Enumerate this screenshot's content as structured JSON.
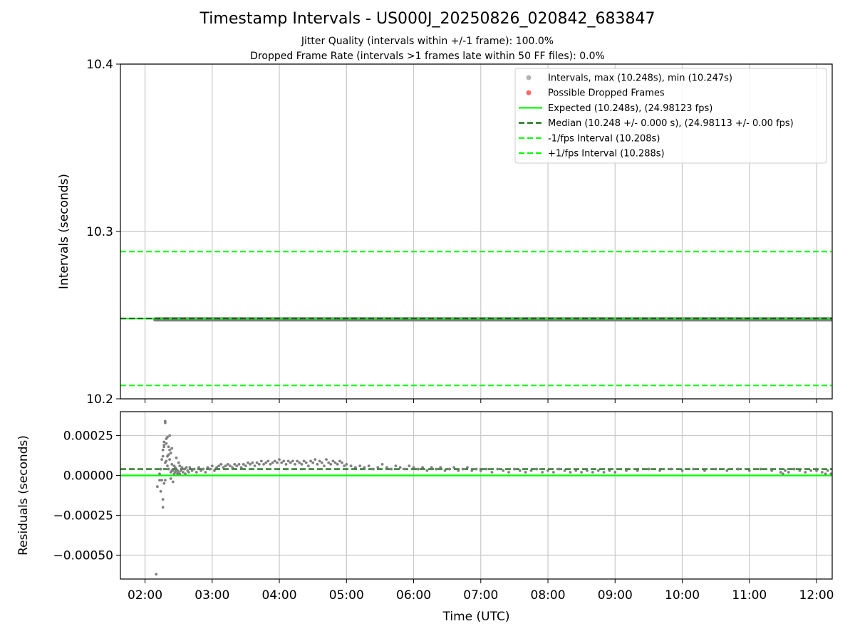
{
  "figure": {
    "title": "Timestamp Intervals - US000J_20250826_020842_683847",
    "subtitle1": "Jitter Quality (intervals within +/-1 frame): 100.0%",
    "subtitle2": "Dropped Frame Rate (intervals >1 frames late within 50 FF files): 0.0%"
  },
  "colors": {
    "points": "#808080",
    "legend_points": "#b3b3b3",
    "dropped": "#ff6666",
    "expected": "#00ff00",
    "median": "#006400",
    "bounds": "#00ff00",
    "grid": "#c8c8c8"
  },
  "chart_data": [
    {
      "type": "scatter",
      "panel": "top",
      "ylabel": "Intervals (seconds)",
      "ylim": [
        10.2,
        10.4
      ],
      "yticks": [
        10.2,
        10.3,
        10.4
      ],
      "ytick_labels": [
        "10.2",
        "10.3",
        "10.4"
      ],
      "xlim": [
        "01:38",
        "12:14"
      ],
      "xticks": [
        "02:00",
        "03:00",
        "04:00",
        "05:00",
        "06:00",
        "07:00",
        "08:00",
        "09:00",
        "10:00",
        "11:00",
        "12:00"
      ],
      "grid": true,
      "legend_position": "upper-right",
      "legend": [
        {
          "label": "Intervals, max (10.248s), min (10.247s)",
          "kind": "marker",
          "color_key": "legend_points"
        },
        {
          "label": "Possible Dropped Frames",
          "kind": "marker",
          "color_key": "dropped"
        },
        {
          "label": "Expected (10.248s), (24.98123 fps)",
          "kind": "solid",
          "color_key": "expected"
        },
        {
          "label": "Median (10.248 +/- 0.000 s), (24.98113 +/- 0.00 fps)",
          "kind": "dashed",
          "color_key": "median"
        },
        {
          "label": "-1/fps Interval (10.208s)",
          "kind": "dashed",
          "color_key": "bounds"
        },
        {
          "label": "+1/fps Interval (10.288s)",
          "kind": "dashed",
          "color_key": "bounds"
        }
      ],
      "series": [
        {
          "name": "Intervals, max (10.248s), min (10.247s)",
          "x_range": [
            "02:09",
            "12:14"
          ],
          "y_min": 10.247,
          "y_max": 10.248
        },
        {
          "name": "Expected (10.248s), (24.98123 fps)",
          "y": 10.248
        },
        {
          "name": "Median (10.248 +/- 0.000 s), (24.98113 +/- 0.00 fps)",
          "y": 10.248
        },
        {
          "name": "-1/fps Interval (10.208s)",
          "y": 10.208
        },
        {
          "name": "+1/fps Interval (10.288s)",
          "y": 10.288
        }
      ]
    },
    {
      "type": "scatter",
      "panel": "bottom",
      "xlabel": "Time (UTC)",
      "ylabel": "Residuals (seconds)",
      "ylim": [
        -0.00065,
        0.0004
      ],
      "yticks": [
        -0.0005,
        -0.00025,
        0.0,
        0.00025
      ],
      "ytick_labels": [
        "−0.00050",
        "−0.00025",
        "0.00000",
        "0.00025"
      ],
      "xlim": [
        "01:38",
        "12:14"
      ],
      "xticks": [
        "02:00",
        "03:00",
        "04:00",
        "05:00",
        "06:00",
        "07:00",
        "08:00",
        "09:00",
        "10:00",
        "11:00",
        "12:00"
      ],
      "xtick_labels": [
        "02:00",
        "03:00",
        "04:00",
        "05:00",
        "06:00",
        "07:00",
        "08:00",
        "09:00",
        "10:00",
        "11:00",
        "12:00"
      ],
      "grid": true,
      "median_residual": 4e-05,
      "expected_residual": 0.0,
      "points": [
        [
          "02:10",
          -0.00062
        ],
        [
          "02:11",
          -7e-05
        ],
        [
          "02:13",
          -3e-05
        ],
        [
          "02:13",
          1e-05
        ],
        [
          "02:14",
          -0.0001
        ],
        [
          "02:14",
          4e-05
        ],
        [
          "02:15",
          0.0001
        ],
        [
          "02:15",
          -3e-05
        ],
        [
          "02:16",
          0.00012
        ],
        [
          "02:16",
          0.00016
        ],
        [
          "02:16",
          -0.0002
        ],
        [
          "02:16",
          -0.00015
        ],
        [
          "02:17",
          0.00018
        ],
        [
          "02:17",
          0.00019
        ],
        [
          "02:17",
          0.00021
        ],
        [
          "02:17",
          -5e-05
        ],
        [
          "02:18",
          0.00033
        ],
        [
          "02:18",
          0.00034
        ],
        [
          "02:18",
          8e-05
        ],
        [
          "02:18",
          -3e-05
        ],
        [
          "02:19",
          0.00023
        ],
        [
          "02:19",
          0.0002
        ],
        [
          "02:19",
          9e-05
        ],
        [
          "02:20",
          0.00024
        ],
        [
          "02:20",
          0.00012
        ],
        [
          "02:20",
          6e-05
        ],
        [
          "02:21",
          0.00018
        ],
        [
          "02:21",
          0.00013
        ],
        [
          "02:21",
          4e-05
        ],
        [
          "02:22",
          0.00025
        ],
        [
          "02:22",
          0.00016
        ],
        [
          "02:22",
          0.0001
        ],
        [
          "02:23",
          0.00014
        ],
        [
          "02:23",
          2e-05
        ],
        [
          "02:23",
          -2e-05
        ],
        [
          "02:24",
          0.00017
        ],
        [
          "02:24",
          7e-05
        ],
        [
          "02:24",
          3e-05
        ],
        [
          "02:25",
          3e-05
        ],
        [
          "02:25",
          -4e-05
        ],
        [
          "02:26",
          6e-05
        ],
        [
          "02:26",
          1e-05
        ],
        [
          "02:27",
          5e-05
        ],
        [
          "02:27",
          2e-05
        ],
        [
          "02:28",
          0.00011
        ],
        [
          "02:28",
          3e-05
        ],
        [
          "02:29",
          3e-05
        ],
        [
          "02:29",
          1e-05
        ],
        [
          "02:30",
          8e-05
        ],
        [
          "02:30",
          2e-05
        ],
        [
          "02:31",
          6e-05
        ],
        [
          "02:31",
          1e-05
        ],
        [
          "02:32",
          3e-05
        ],
        [
          "02:33",
          5e-05
        ],
        [
          "02:34",
          2e-05
        ],
        [
          "02:35",
          4e-05
        ],
        [
          "02:36",
          1e-05
        ],
        [
          "02:37",
          5e-05
        ],
        [
          "02:38",
          3e-05
        ],
        [
          "02:39",
          2e-05
        ],
        [
          "02:40",
          5e-05
        ],
        [
          "02:42",
          3e-05
        ],
        [
          "02:44",
          4e-05
        ],
        [
          "02:46",
          2e-05
        ],
        [
          "02:48",
          5e-05
        ],
        [
          "02:50",
          3e-05
        ],
        [
          "02:52",
          4e-05
        ],
        [
          "02:54",
          2e-05
        ],
        [
          "02:56",
          5e-05
        ],
        [
          "02:58",
          4e-05
        ],
        [
          "03:00",
          6e-05
        ],
        [
          "03:02",
          3e-05
        ],
        [
          "03:04",
          5e-05
        ],
        [
          "03:06",
          6e-05
        ],
        [
          "03:08",
          7e-05
        ],
        [
          "03:10",
          5e-05
        ],
        [
          "03:12",
          6e-05
        ],
        [
          "03:14",
          7e-05
        ],
        [
          "03:16",
          6e-05
        ],
        [
          "03:18",
          5e-05
        ],
        [
          "03:20",
          7e-05
        ],
        [
          "03:22",
          6e-05
        ],
        [
          "03:24",
          7e-05
        ],
        [
          "03:26",
          5e-05
        ],
        [
          "03:28",
          7e-05
        ],
        [
          "03:30",
          6e-05
        ],
        [
          "03:32",
          8e-05
        ],
        [
          "03:34",
          7e-05
        ],
        [
          "03:36",
          8e-05
        ],
        [
          "03:38",
          6e-05
        ],
        [
          "03:40",
          8e-05
        ],
        [
          "03:42",
          7e-05
        ],
        [
          "03:44",
          9e-05
        ],
        [
          "03:46",
          7e-05
        ],
        [
          "03:48",
          8e-05
        ],
        [
          "03:50",
          9e-05
        ],
        [
          "03:52",
          7e-05
        ],
        [
          "03:54",
          8e-05
        ],
        [
          "03:56",
          9e-05
        ],
        [
          "03:58",
          8e-05
        ],
        [
          "04:00",
          0.0001
        ],
        [
          "04:02",
          8e-05
        ],
        [
          "04:04",
          9e-05
        ],
        [
          "04:06",
          7e-05
        ],
        [
          "04:08",
          9e-05
        ],
        [
          "04:10",
          8e-05
        ],
        [
          "04:12",
          9e-05
        ],
        [
          "04:14",
          7e-05
        ],
        [
          "04:16",
          9e-05
        ],
        [
          "04:18",
          8e-05
        ],
        [
          "04:20",
          7e-05
        ],
        [
          "04:22",
          9e-05
        ],
        [
          "04:24",
          8e-05
        ],
        [
          "04:26",
          6e-05
        ],
        [
          "04:28",
          9e-05
        ],
        [
          "04:30",
          8e-05
        ],
        [
          "04:32",
          0.0001
        ],
        [
          "04:34",
          7e-05
        ],
        [
          "04:36",
          9e-05
        ],
        [
          "04:38",
          8e-05
        ],
        [
          "04:40",
          6e-05
        ],
        [
          "04:42",
          0.0001
        ],
        [
          "04:44",
          8e-05
        ],
        [
          "04:46",
          7e-05
        ],
        [
          "04:48",
          9e-05
        ],
        [
          "04:50",
          8e-05
        ],
        [
          "04:52",
          7e-05
        ],
        [
          "04:54",
          9e-05
        ],
        [
          "04:56",
          8e-05
        ],
        [
          "04:58",
          6e-05
        ],
        [
          "05:00",
          7e-05
        ],
        [
          "05:04",
          6e-05
        ],
        [
          "05:08",
          5e-05
        ],
        [
          "05:12",
          6e-05
        ],
        [
          "05:16",
          5e-05
        ],
        [
          "05:20",
          6e-05
        ],
        [
          "05:24",
          4e-05
        ],
        [
          "05:28",
          5e-05
        ],
        [
          "05:32",
          7e-05
        ],
        [
          "05:36",
          5e-05
        ],
        [
          "05:40",
          4e-05
        ],
        [
          "05:44",
          6e-05
        ],
        [
          "05:48",
          5e-05
        ],
        [
          "05:52",
          4e-05
        ],
        [
          "05:56",
          6e-05
        ],
        [
          "06:00",
          5e-05
        ],
        [
          "06:04",
          4e-05
        ],
        [
          "06:08",
          5e-05
        ],
        [
          "06:12",
          3e-05
        ],
        [
          "06:16",
          5e-05
        ],
        [
          "06:20",
          4e-05
        ],
        [
          "06:24",
          5e-05
        ],
        [
          "06:28",
          3e-05
        ],
        [
          "06:32",
          4e-05
        ],
        [
          "06:36",
          5e-05
        ],
        [
          "06:40",
          3e-05
        ],
        [
          "06:44",
          4e-05
        ],
        [
          "06:48",
          5e-05
        ],
        [
          "06:52",
          3e-05
        ],
        [
          "06:56",
          4e-05
        ],
        [
          "07:00",
          3e-05
        ],
        [
          "07:05",
          4e-05
        ],
        [
          "07:10",
          2e-05
        ],
        [
          "07:15",
          4e-05
        ],
        [
          "07:20",
          3e-05
        ],
        [
          "07:25",
          2e-05
        ],
        [
          "07:30",
          4e-05
        ],
        [
          "07:35",
          3e-05
        ],
        [
          "07:40",
          2e-05
        ],
        [
          "07:45",
          3e-05
        ],
        [
          "07:50",
          4e-05
        ],
        [
          "07:55",
          2e-05
        ],
        [
          "08:00",
          3e-05
        ],
        [
          "08:05",
          2e-05
        ],
        [
          "08:10",
          4e-05
        ],
        [
          "08:15",
          3e-05
        ],
        [
          "08:20",
          2e-05
        ],
        [
          "08:25",
          3e-05
        ],
        [
          "08:30",
          2e-05
        ],
        [
          "08:35",
          3e-05
        ],
        [
          "08:40",
          2e-05
        ],
        [
          "08:45",
          3e-05
        ],
        [
          "08:50",
          2e-05
        ],
        [
          "08:55",
          3e-05
        ],
        [
          "09:00",
          2e-05
        ],
        [
          "09:10",
          3e-05
        ],
        [
          "09:20",
          3e-05
        ],
        [
          "09:30",
          4e-05
        ],
        [
          "09:40",
          3e-05
        ],
        [
          "09:50",
          4e-05
        ],
        [
          "10:00",
          3e-05
        ],
        [
          "10:10",
          4e-05
        ],
        [
          "10:20",
          3e-05
        ],
        [
          "10:30",
          4e-05
        ],
        [
          "10:40",
          3e-05
        ],
        [
          "10:50",
          4e-05
        ],
        [
          "11:00",
          3e-05
        ],
        [
          "11:10",
          4e-05
        ],
        [
          "11:20",
          3e-05
        ],
        [
          "11:28",
          2e-05
        ],
        [
          "11:30",
          1e-05
        ],
        [
          "11:32",
          3e-05
        ],
        [
          "11:35",
          2e-05
        ],
        [
          "11:40",
          4e-05
        ],
        [
          "11:45",
          3e-05
        ],
        [
          "11:50",
          2e-05
        ],
        [
          "11:55",
          3e-05
        ],
        [
          "12:00",
          3e-05
        ],
        [
          "12:05",
          2e-05
        ],
        [
          "12:08",
          1e-05
        ],
        [
          "12:10",
          3e-05
        ],
        [
          "12:13",
          1e-05
        ]
      ]
    }
  ]
}
